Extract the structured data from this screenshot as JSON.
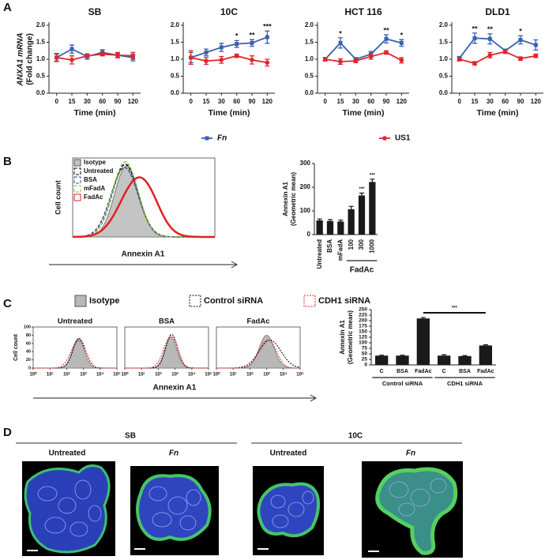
{
  "panel_labels": [
    "A",
    "B",
    "C",
    "D"
  ],
  "chart_data": [
    {
      "type": "line",
      "title": "SB",
      "ylabel": [
        "ANXA1 mRNA",
        "(Fold change)"
      ],
      "xlabel": "Time (min)",
      "categories": [
        "0",
        "15",
        "30",
        "60",
        "90",
        "120"
      ],
      "ylim": [
        0,
        2
      ],
      "yticks": [
        {
          "value": 0,
          "label": "0.0"
        },
        {
          "value": 0.5,
          "label": "0.5"
        },
        {
          "value": 1,
          "label": "1.0"
        },
        {
          "value": 1.5,
          "label": "1.5"
        },
        {
          "value": 2,
          "label": "2.0"
        }
      ],
      "series": [
        {
          "name": "Fn",
          "color": "#3a5fb0",
          "values": [
            1.05,
            1.3,
            1.08,
            1.2,
            1.12,
            1.05
          ],
          "errors": [
            0.1,
            0.12,
            0.08,
            0.08,
            0.07,
            0.1
          ]
        },
        {
          "name": "US1",
          "color": "#e0262b",
          "values": [
            1.05,
            0.98,
            1.1,
            1.15,
            1.12,
            1.1
          ],
          "errors": [
            0.12,
            0.12,
            0.05,
            0.05,
            0.08,
            0.1
          ]
        }
      ]
    },
    {
      "type": "line",
      "title": "10C",
      "xlabel": "Time (min)",
      "categories": [
        "0",
        "15",
        "30",
        "60",
        "90",
        "120"
      ],
      "ylim": [
        0,
        2
      ],
      "yticks": [
        {
          "value": 0,
          "label": "0.0"
        },
        {
          "value": 0.5,
          "label": "0.5"
        },
        {
          "value": 1,
          "label": "1.0"
        },
        {
          "value": 1.5,
          "label": "1.5"
        },
        {
          "value": 2,
          "label": "2.0"
        }
      ],
      "sig_labels": [
        null,
        null,
        null,
        "*",
        "**",
        "***"
      ],
      "series": [
        {
          "color": "#3a5fb0",
          "values": [
            1.05,
            1.2,
            1.35,
            1.45,
            1.48,
            1.65
          ],
          "errors": [
            0.15,
            0.1,
            0.12,
            0.1,
            0.1,
            0.18
          ]
        },
        {
          "color": "#e0262b",
          "values": [
            1.05,
            0.95,
            0.98,
            1.1,
            0.98,
            0.9
          ],
          "errors": [
            0.2,
            0.1,
            0.1,
            0.05,
            0.12,
            0.1
          ]
        }
      ]
    },
    {
      "type": "line",
      "title": "HCT 116",
      "xlabel": "Time (min)",
      "categories": [
        "0",
        "15",
        "30",
        "60",
        "90",
        "120"
      ],
      "ylim": [
        0,
        2
      ],
      "yticks": [
        {
          "value": 0,
          "label": "0.0"
        },
        {
          "value": 0.5,
          "label": "0.5"
        },
        {
          "value": 1,
          "label": "1.0"
        },
        {
          "value": 1.5,
          "label": "1.5"
        },
        {
          "value": 2,
          "label": "2.0"
        }
      ],
      "sig_labels": [
        null,
        "*",
        null,
        null,
        "**",
        "*"
      ],
      "series": [
        {
          "color": "#3a5fb0",
          "values": [
            1.0,
            1.48,
            1.0,
            1.15,
            1.6,
            1.48
          ],
          "errors": [
            0.05,
            0.15,
            0.05,
            0.08,
            0.12,
            0.1
          ]
        },
        {
          "color": "#e0262b",
          "values": [
            1.0,
            0.93,
            0.95,
            1.08,
            1.2,
            0.97
          ],
          "errors": [
            0.05,
            0.08,
            0.05,
            0.08,
            0.05,
            0.08
          ]
        }
      ]
    },
    {
      "type": "line",
      "title": "DLD1",
      "xlabel": "Time (min)",
      "categories": [
        "0",
        "15",
        "30",
        "60",
        "90",
        "120"
      ],
      "ylim": [
        0,
        2
      ],
      "yticks": [
        {
          "value": 0,
          "label": "0.0"
        },
        {
          "value": 0.5,
          "label": "0.5"
        },
        {
          "value": 1,
          "label": "1.0"
        },
        {
          "value": 1.5,
          "label": "1.5"
        },
        {
          "value": 2,
          "label": "2.0"
        }
      ],
      "sig_labels": [
        null,
        "**",
        "**",
        null,
        "*",
        null
      ],
      "series": [
        {
          "color": "#3a5fb0",
          "values": [
            1.03,
            1.62,
            1.6,
            1.25,
            1.57,
            1.42
          ],
          "errors": [
            0.05,
            0.15,
            0.15,
            0.05,
            0.12,
            0.15
          ]
        },
        {
          "color": "#e0262b",
          "values": [
            1.0,
            0.88,
            1.12,
            1.22,
            1.02,
            1.1
          ],
          "errors": [
            0.05,
            0.05,
            0.08,
            0.05,
            0.05,
            0.05
          ]
        }
      ]
    },
    {
      "type": "density",
      "ylabel": "Cell count",
      "xlabel": "Annexin A1",
      "series": [
        {
          "name": "Isotype",
          "color": "#c4c4c4"
        },
        {
          "name": "Untreated",
          "color": "#000000"
        },
        {
          "name": "BSA",
          "color": "#3550a0"
        },
        {
          "name": "mFadA",
          "color": "#8fbf3a"
        },
        {
          "name": "FadAc",
          "color": "#e32020"
        }
      ]
    },
    {
      "type": "bar",
      "ylabel": [
        "Annexin A1",
        "(Geometric mean)"
      ],
      "color": "#1a1a1a",
      "categories": [
        "Untreated",
        "BSA",
        "mFadA",
        "100",
        "300",
        "1000"
      ],
      "values": [
        60,
        57,
        55,
        107,
        165,
        222
      ],
      "errors": [
        6,
        6,
        6,
        12,
        10,
        12
      ],
      "sig_labels": [
        null,
        null,
        null,
        null,
        "***",
        "***"
      ],
      "groups": [
        "FadAc"
      ],
      "ylim": [
        0,
        300
      ],
      "yticks": [
        0,
        100,
        200,
        300
      ]
    },
    {
      "type": "density",
      "title": "Untreated",
      "ylabel": "Cell count",
      "xlabel": "Annexin A1",
      "xscale": "log",
      "xlim": [
        1,
        100000
      ],
      "xticks": [
        {
          "value": 1,
          "label": "10⁰"
        },
        {
          "value": 10,
          "label": "10¹"
        },
        {
          "value": 100,
          "label": "10²"
        },
        {
          "value": 1000,
          "label": "10³"
        },
        {
          "value": 10000,
          "label": "10⁴"
        },
        {
          "value": 100000,
          "label": "10⁵"
        }
      ],
      "ylim": [
        0,
        100
      ],
      "yticks": [
        0,
        20,
        40,
        60,
        80,
        100
      ],
      "series": [
        {
          "name": "Isotype",
          "color": "#b8b8b8"
        },
        {
          "name": "Control siRNA",
          "color": "#000000"
        },
        {
          "name": "CDH1 siRNA",
          "color": "#e32020"
        }
      ]
    },
    {
      "type": "density",
      "title": "BSA",
      "xscale": "log",
      "xlim": [
        1,
        100000
      ],
      "xticks": [
        {
          "value": 1,
          "label": "10⁰"
        },
        {
          "value": 10,
          "label": "10¹"
        },
        {
          "value": 100,
          "label": "10²"
        },
        {
          "value": 1000,
          "label": "10³"
        },
        {
          "value": 10000,
          "label": "10⁴"
        },
        {
          "value": 100000,
          "label": "10⁵"
        }
      ],
      "ylim": [
        0,
        100
      ],
      "series": [
        {
          "color": "#b8b8b8"
        },
        {
          "color": "#000000"
        },
        {
          "color": "#e32020"
        }
      ]
    },
    {
      "type": "density",
      "title": "FadAc",
      "xscale": "log",
      "xlim": [
        1,
        100000
      ],
      "xticks": [
        {
          "value": 1,
          "label": "10⁰"
        },
        {
          "value": 10,
          "label": "10¹"
        },
        {
          "value": 100,
          "label": "10²"
        },
        {
          "value": 1000,
          "label": "10³"
        },
        {
          "value": 10000,
          "label": "10⁴"
        },
        {
          "value": 100000,
          "label": "10⁵"
        }
      ],
      "ylim": [
        0,
        100
      ],
      "series": [
        {
          "color": "#b8b8b8"
        },
        {
          "color": "#000000"
        },
        {
          "color": "#e32020"
        }
      ]
    },
    {
      "type": "bar",
      "ylabel": [
        "Annexin A1",
        "(Geometric mean)"
      ],
      "color": "#1a1a1a",
      "categories": [
        "C",
        "BSA",
        "FadAc",
        "C",
        "BSA",
        "FadAc"
      ],
      "values": [
        42,
        42,
        210,
        42,
        40,
        88
      ],
      "errors": [
        2,
        2,
        4,
        4,
        2,
        3
      ],
      "groups": [
        "Control siRNA",
        "CDH1 siRNA"
      ],
      "bracket_label": "***",
      "ylim": [
        0,
        250
      ],
      "yticks": [
        0,
        25,
        50,
        75,
        100,
        125,
        150,
        175,
        200,
        225,
        250
      ]
    }
  ],
  "figure_d": {
    "groups": [
      "SB",
      "10C"
    ],
    "labels": [
      "Untreated",
      "Fn",
      "Untreated",
      "Fn"
    ]
  }
}
